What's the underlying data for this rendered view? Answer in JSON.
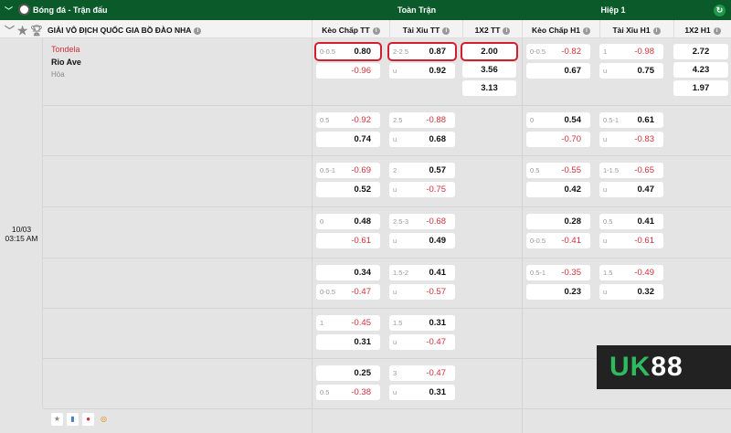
{
  "topbar": {
    "sport": "Bóng đá - Trận đấu",
    "full_time": "Toàn Trận",
    "half1": "Hiệp 1"
  },
  "league": {
    "name": "GIẢI VÔ ĐỊCH QUỐC GIA BỒ ĐÀO NHA"
  },
  "columns": [
    "Kèo Chấp TT",
    "Tài Xỉu TT",
    "1X2 TT",
    "Kèo Chấp H1",
    "Tài Xỉu H1",
    "1X2 H1"
  ],
  "match": {
    "home": "Tondela",
    "away": "Rio Ave",
    "draw": "Hòa",
    "date": "10/03",
    "time": "03:15 AM"
  },
  "colors": {
    "header_green": "#0b5a2a",
    "negative": "#d0303a",
    "highlight": "#d21f2e"
  },
  "rows": [
    {
      "kc_tt": [
        [
          "0-0.5",
          "0.80"
        ],
        [
          "",
          "-0.96"
        ]
      ],
      "tx_tt": [
        [
          "2-2.5",
          "0.87"
        ],
        [
          "u",
          "0.92"
        ]
      ],
      "x12_tt": [
        "2.00",
        "3.56",
        "3.13"
      ],
      "kc_h1": [
        [
          "0-0.5",
          "-0.82"
        ],
        [
          "",
          "0.67"
        ]
      ],
      "tx_h1": [
        [
          "1",
          "-0.98"
        ],
        [
          "u",
          "0.75"
        ]
      ],
      "x12_h1": [
        "2.72",
        "4.23",
        "1.97"
      ]
    },
    {
      "kc_tt": [
        [
          "0.5",
          "-0.92"
        ],
        [
          "",
          "0.74"
        ]
      ],
      "tx_tt": [
        [
          "2.5",
          "-0.88"
        ],
        [
          "u",
          "0.68"
        ]
      ],
      "kc_h1": [
        [
          "0",
          "0.54"
        ],
        [
          "",
          "-0.70"
        ]
      ],
      "tx_h1": [
        [
          "0.5-1",
          "0.61"
        ],
        [
          "u",
          "-0.83"
        ]
      ]
    },
    {
      "kc_tt": [
        [
          "0.5-1",
          "-0.69"
        ],
        [
          "",
          "0.52"
        ]
      ],
      "tx_tt": [
        [
          "2",
          "0.57"
        ],
        [
          "u",
          "-0.75"
        ]
      ],
      "kc_h1": [
        [
          "0.5",
          "-0.55"
        ],
        [
          "",
          "0.42"
        ]
      ],
      "tx_h1": [
        [
          "1-1.5",
          "-0.65"
        ],
        [
          "u",
          "0.47"
        ]
      ]
    },
    {
      "kc_tt": [
        [
          "0",
          "0.48"
        ],
        [
          "",
          "-0.61"
        ]
      ],
      "tx_tt": [
        [
          "2.5-3",
          "-0.68"
        ],
        [
          "u",
          "0.49"
        ]
      ],
      "kc_h1": [
        [
          "",
          "0.28"
        ],
        [
          "0-0.5",
          "-0.41"
        ]
      ],
      "tx_h1": [
        [
          "0.5",
          "0.41"
        ],
        [
          "u",
          "-0.61"
        ]
      ]
    },
    {
      "kc_tt": [
        [
          "",
          "0.34"
        ],
        [
          "0-0.5",
          "-0.47"
        ]
      ],
      "tx_tt": [
        [
          "1.5-2",
          "0.41"
        ],
        [
          "u",
          "-0.57"
        ]
      ],
      "kc_h1": [
        [
          "0.5-1",
          "-0.35"
        ],
        [
          "",
          "0.23"
        ]
      ],
      "tx_h1": [
        [
          "1.5",
          "-0.49"
        ],
        [
          "u",
          "0.32"
        ]
      ]
    },
    {
      "kc_tt": [
        [
          "1",
          "-0.45"
        ],
        [
          "",
          "0.31"
        ]
      ],
      "tx_tt": [
        [
          "1.5",
          "0.31"
        ],
        [
          "u",
          "-0.47"
        ]
      ]
    },
    {
      "kc_tt": [
        [
          "",
          "0.25"
        ],
        [
          "0.5",
          "-0.38"
        ]
      ],
      "tx_tt": [
        [
          "3",
          "-0.47"
        ],
        [
          "u",
          "0.31"
        ]
      ]
    }
  ],
  "logo": {
    "text_a": "UK",
    "text_b": "88"
  }
}
